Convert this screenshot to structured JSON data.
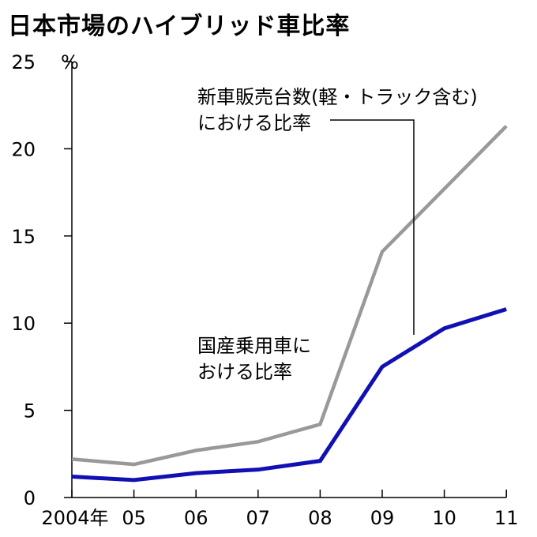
{
  "title": "日本市場のハイブリッド車比率",
  "chart_data": {
    "type": "line",
    "title": "日本市場のハイブリッド車比率",
    "unit_label": "%",
    "categories": [
      "2004年",
      "05",
      "06",
      "07",
      "08",
      "09",
      "10",
      "11"
    ],
    "ylim": [
      0,
      25
    ],
    "yticks": [
      0,
      5,
      10,
      15,
      20,
      25
    ],
    "grid": false,
    "legend": "none",
    "series": [
      {
        "name": "新車販売台数(軽・トラック含む)における比率",
        "label_lines": [
          "新車販売台数(軽・トラック含む)",
          "における比率"
        ],
        "color": "#999999",
        "values": [
          2.2,
          1.9,
          2.7,
          3.2,
          4.2,
          14.1,
          17.7,
          21.3
        ]
      },
      {
        "name": "国産乗用車における比率",
        "label_lines": [
          "国産乗用車に",
          "おける比率"
        ],
        "color": "#1010b4",
        "values": [
          1.2,
          1.0,
          1.4,
          1.6,
          2.1,
          7.5,
          9.7,
          10.8
        ]
      }
    ]
  }
}
